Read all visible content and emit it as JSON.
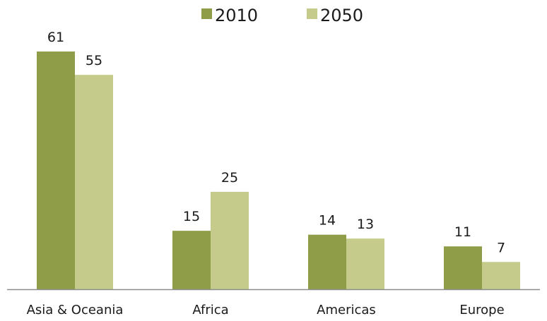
{
  "chart_data": {
    "type": "bar",
    "categories": [
      "Asia & Oceania",
      "Africa",
      "Americas",
      "Europe"
    ],
    "series": [
      {
        "name": "2010",
        "values": [
          61,
          15,
          14,
          11
        ],
        "color": "#8f9c48"
      },
      {
        "name": "2050",
        "values": [
          55,
          25,
          13,
          7
        ],
        "color": "#c5cb8a"
      }
    ],
    "title": "",
    "xlabel": "",
    "ylabel": "",
    "ylim": [
      0,
      61
    ],
    "legend": "top-center",
    "grid": false,
    "data_labels": true,
    "axis_color": "#8c8c8c"
  }
}
